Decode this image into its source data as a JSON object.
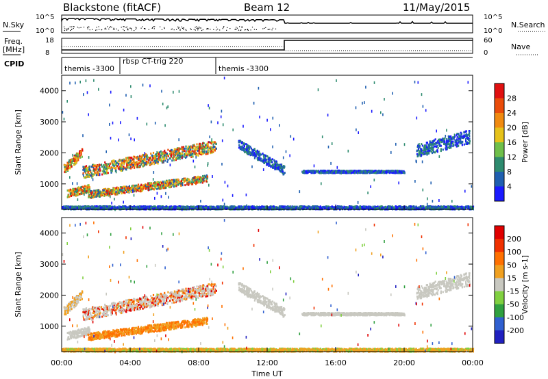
{
  "header": {
    "station": "Blackstone (fitACF)",
    "beam": "Beam 12",
    "date": "11/May/2015"
  },
  "top_panels": {
    "nsky_label": "N.Sky",
    "nsearch_label": "N.Search",
    "nsky_ticks": [
      "10^5",
      "10^0"
    ],
    "nsearch_ticks": [
      "10^5",
      "10^0"
    ],
    "freq_label": "Freq.",
    "freq_unit": "[MHz]",
    "freq_ticks": [
      "18",
      "8"
    ],
    "nave_label": "Nave",
    "nave_ticks": [
      "60",
      "0"
    ],
    "cpid_label": "CPID",
    "cpid_segments": [
      {
        "name": "themis -3300",
        "start_hr": 0,
        "end_hr": 3.4
      },
      {
        "name": "rbsp CT-trig 220",
        "start_hr": 3.4,
        "end_hr": 9.0
      },
      {
        "name": "themis -3300",
        "start_hr": 9.0,
        "end_hr": 24.0
      }
    ],
    "freq_step_hr": 13.0,
    "nave_step_hr": 13.0
  },
  "chart_data": [
    {
      "type": "heatmap",
      "quantity": "power",
      "ylabel": "Slant Range [km]",
      "xlabel": "",
      "xlim_hr": [
        0,
        24
      ],
      "ylim": [
        180,
        4500
      ],
      "yticks": [
        1000,
        2000,
        3000,
        4000
      ],
      "colorbar_label": "Power [dB]",
      "colorbar_ticks": [
        4,
        8,
        12,
        16,
        20,
        24,
        28
      ],
      "colorbar_range": [
        0,
        32
      ],
      "colors": [
        "#1a1aff",
        "#1f5fb0",
        "#2e8b6f",
        "#6fbf4a",
        "#e6c21a",
        "#f08a10",
        "#ea4c0a",
        "#e01010"
      ]
    },
    {
      "type": "heatmap",
      "quantity": "velocity",
      "ylabel": "Slant Range [km]",
      "xlabel": "Time UT",
      "xlim_hr": [
        0,
        24
      ],
      "ylim": [
        180,
        4500
      ],
      "yticks": [
        1000,
        2000,
        3000,
        4000
      ],
      "xticks": [
        "00:00",
        "04:00",
        "08:00",
        "12:00",
        "16:00",
        "20:00",
        "00:00"
      ],
      "colorbar_label": "Velocity [m s-1]",
      "colorbar_ticks": [
        200,
        100,
        50,
        15,
        -15,
        -50,
        -100,
        -200
      ],
      "colors": [
        "#2020c0",
        "#3060d0",
        "#30a040",
        "#80d040",
        "#c8c8c0",
        "#f0a020",
        "#ff7000",
        "#f03000",
        "#e00000"
      ]
    }
  ]
}
